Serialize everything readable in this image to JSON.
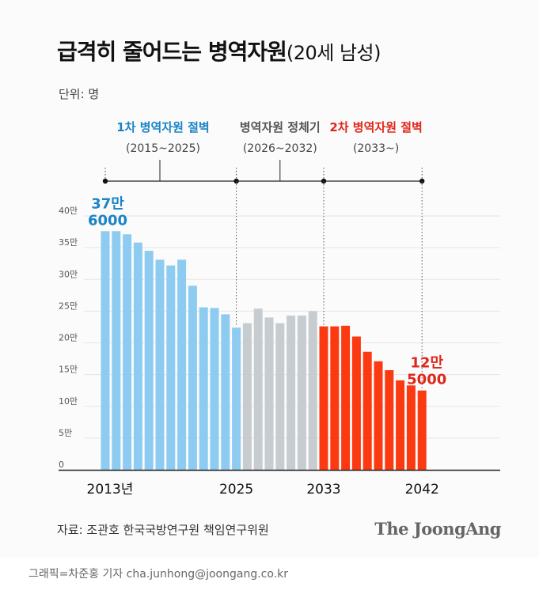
{
  "title": "급격히 줄어드는 병역자원",
  "subtitle": "(20세 남성)",
  "unit_label": "단위: 명",
  "source": "자료: 조관호 한국국방연구원 책임연구위원",
  "brand": "The JoongAng",
  "credit": "그래픽=차준홍 기자 cha.junhong@joongang.co.kr",
  "colors": {
    "period1": "#8ecbf0",
    "period2": "#c7ccd0",
    "period3": "#fb3a12",
    "period1_text": "#1a84c7",
    "period3_text": "#e0261a"
  },
  "chart_data": {
    "type": "bar",
    "title": "급격히 줄어드는 병역자원",
    "subtitle": "(20세 남성)",
    "ylabel": "단위: 명",
    "ylim": [
      0,
      400000
    ],
    "grid": true,
    "y_ticks": [
      {
        "value": 0,
        "label": "0"
      },
      {
        "value": 50000,
        "label": "5만"
      },
      {
        "value": 100000,
        "label": "10만"
      },
      {
        "value": 150000,
        "label": "15만"
      },
      {
        "value": 200000,
        "label": "20만"
      },
      {
        "value": 250000,
        "label": "25만"
      },
      {
        "value": 300000,
        "label": "30만"
      },
      {
        "value": 350000,
        "label": "35만"
      },
      {
        "value": 400000,
        "label": "40만"
      }
    ],
    "x_ticks": [
      {
        "year": 2013,
        "label": "2013년"
      },
      {
        "year": 2025,
        "label": "2025"
      },
      {
        "year": 2033,
        "label": "2033"
      },
      {
        "year": 2042,
        "label": "2042"
      }
    ],
    "periods": [
      {
        "title": "1차 병역자원 절벽",
        "range": "(2015~2025)",
        "start": 2013,
        "end": 2025,
        "color": "#8ecbf0",
        "text_color": "#1a84c7"
      },
      {
        "title": "병역자원 정체기",
        "range": "(2026~2032)",
        "start": 2026,
        "end": 2032,
        "color": "#c7ccd0",
        "text_color": "#555555"
      },
      {
        "title": "2차 병역자원 절벽",
        "range": "(2033~)",
        "start": 2033,
        "end": 2042,
        "color": "#fb3a12",
        "text_color": "#e0261a"
      }
    ],
    "timeline_dots": [
      2013,
      2025,
      2033,
      2042
    ],
    "timeline_ticks": [
      2018,
      2029
    ],
    "series": [
      {
        "x": [
          2013,
          2014,
          2015,
          2016,
          2017,
          2018,
          2019,
          2020,
          2021,
          2022,
          2023,
          2024,
          2025,
          2026,
          2027,
          2028,
          2029,
          2030,
          2031,
          2032,
          2033,
          2034,
          2035,
          2036,
          2037,
          2038,
          2039,
          2040,
          2041,
          2042
        ],
        "values": [
          376000,
          376000,
          371000,
          358000,
          345000,
          331000,
          322000,
          331000,
          290000,
          256000,
          255000,
          245000,
          224000,
          231000,
          254000,
          240000,
          231000,
          243000,
          243000,
          250000,
          226000,
          226000,
          227000,
          210000,
          186000,
          171000,
          157000,
          141000,
          133000,
          125000
        ]
      }
    ],
    "annotations": [
      {
        "year": 2013,
        "lines": [
          "37만",
          "6000"
        ],
        "color": "#1a84c7"
      },
      {
        "year": 2042,
        "lines": [
          "12만",
          "5000"
        ],
        "color": "#e0261a"
      }
    ]
  }
}
